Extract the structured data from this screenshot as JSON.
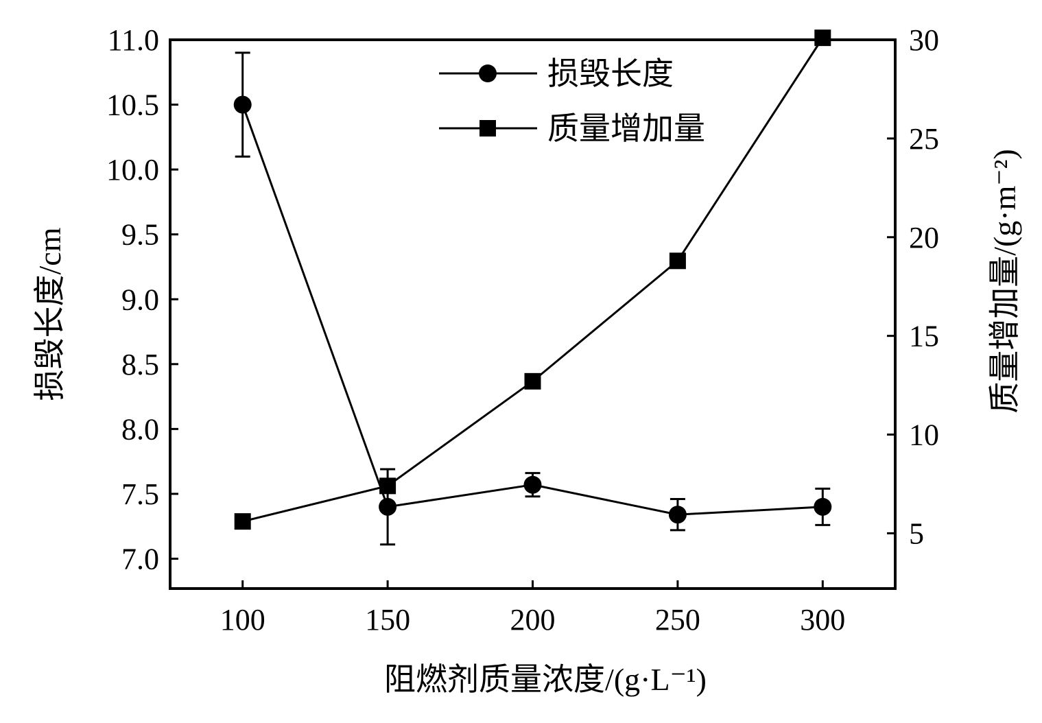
{
  "chart_data": {
    "type": "line",
    "xlabel": "阻燃剂质量浓度/(g·L⁻¹)",
    "ylabel_left": "损毁长度/cm",
    "ylabel_right": "质量增加量/(g·m⁻²)",
    "x": [
      100,
      150,
      200,
      250,
      300
    ],
    "x_ticks": [
      "100",
      "150",
      "200",
      "250",
      "300"
    ],
    "xlim": [
      75,
      325
    ],
    "ylim_left": [
      6.77,
      11.0
    ],
    "ylim_right": [
      2.2,
      30.0
    ],
    "y_ticks_left": [
      "7.0",
      "7.5",
      "8.0",
      "8.5",
      "9.0",
      "9.5",
      "10.0",
      "10.5",
      "11.0"
    ],
    "y_ticks_right": [
      "5",
      "10",
      "15",
      "20",
      "25",
      "30"
    ],
    "legend_position": "top-center",
    "series": [
      {
        "name": "损毁长度",
        "axis": "left",
        "marker": "circle",
        "values": [
          10.5,
          7.4,
          7.57,
          7.34,
          7.4
        ],
        "error": [
          0.4,
          0.29,
          0.09,
          0.12,
          0.14
        ]
      },
      {
        "name": "质量增加量",
        "axis": "right",
        "marker": "square",
        "values": [
          5.6,
          7.4,
          12.7,
          18.8,
          30.1
        ]
      }
    ]
  }
}
